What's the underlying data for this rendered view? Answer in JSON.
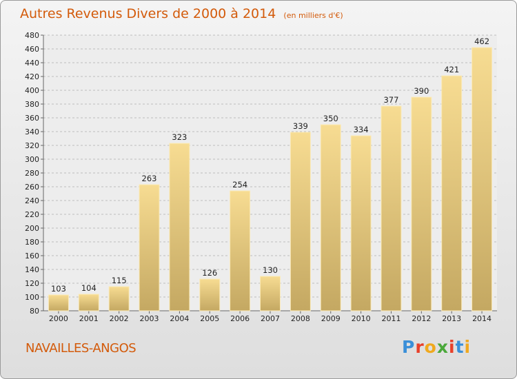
{
  "header": {
    "title": "Autres Revenus Divers de 2000 à 2014",
    "subtitle": "(en milliers d'€)"
  },
  "commune": "NAVAILLES-ANGOS",
  "brand": {
    "letters": [
      "P",
      "r",
      "o",
      "x",
      "i",
      "t",
      "i"
    ],
    "colors": [
      "#3a8fd8",
      "#e8402a",
      "#f0a91e",
      "#4aa83a",
      "#e8402a",
      "#3a8fd8",
      "#f0a91e"
    ]
  },
  "chart_data": {
    "type": "bar",
    "title": "Autres Revenus Divers de 2000 à 2014",
    "subtitle": "(en milliers d'€)",
    "categories": [
      "2000",
      "2001",
      "2002",
      "2003",
      "2004",
      "2005",
      "2006",
      "2007",
      "2008",
      "2009",
      "2010",
      "2011",
      "2012",
      "2013",
      "2014"
    ],
    "values": [
      103,
      104,
      115,
      263,
      323,
      126,
      254,
      130,
      339,
      350,
      334,
      377,
      390,
      421,
      462
    ],
    "ylim": [
      80,
      480
    ],
    "yticks": [
      80,
      100,
      120,
      140,
      160,
      180,
      200,
      220,
      240,
      260,
      280,
      300,
      320,
      340,
      360,
      380,
      400,
      420,
      440,
      460,
      480
    ],
    "grid": true,
    "bar_color": "#e8cf85",
    "xlabel": "",
    "ylabel": ""
  }
}
